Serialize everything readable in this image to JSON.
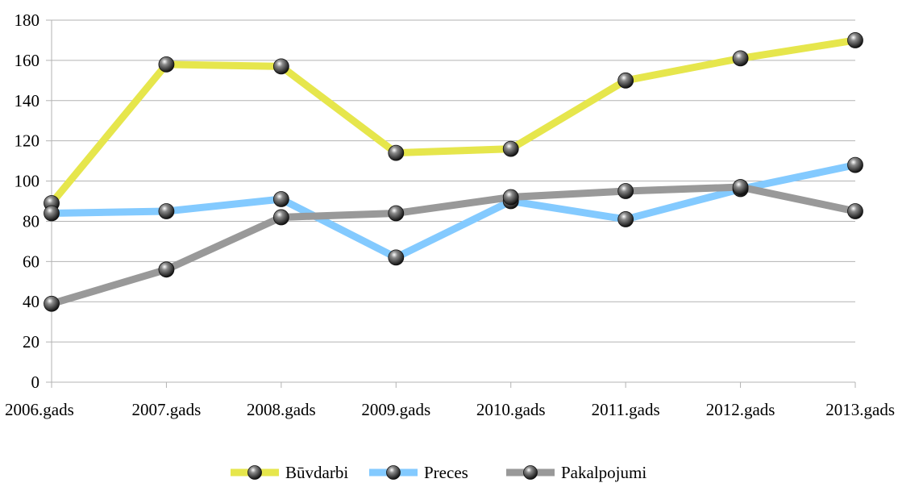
{
  "chart_data": {
    "type": "line",
    "title": "",
    "xlabel": "",
    "ylabel": "",
    "categories": [
      "2006.gads",
      "2007.gads",
      "2008.gads",
      "2009.gads",
      "2010.gads",
      "2011.gads",
      "2012.gads",
      "2013.gads"
    ],
    "ylim": [
      0,
      180
    ],
    "yticks": [
      0,
      20,
      40,
      60,
      80,
      100,
      120,
      140,
      160,
      180
    ],
    "grid": true,
    "legend_position": "bottom",
    "series": [
      {
        "name": "Būvdarbi",
        "color": "#e6e64c",
        "values": [
          89,
          158,
          157,
          114,
          116,
          150,
          161,
          170
        ]
      },
      {
        "name": "Preces",
        "color": "#83caff",
        "values": [
          84,
          85,
          91,
          62,
          90,
          81,
          96,
          108
        ]
      },
      {
        "name": "Pakalpojumi",
        "color": "#999999",
        "values": [
          39,
          56,
          82,
          84,
          92,
          95,
          97,
          85
        ]
      }
    ]
  }
}
